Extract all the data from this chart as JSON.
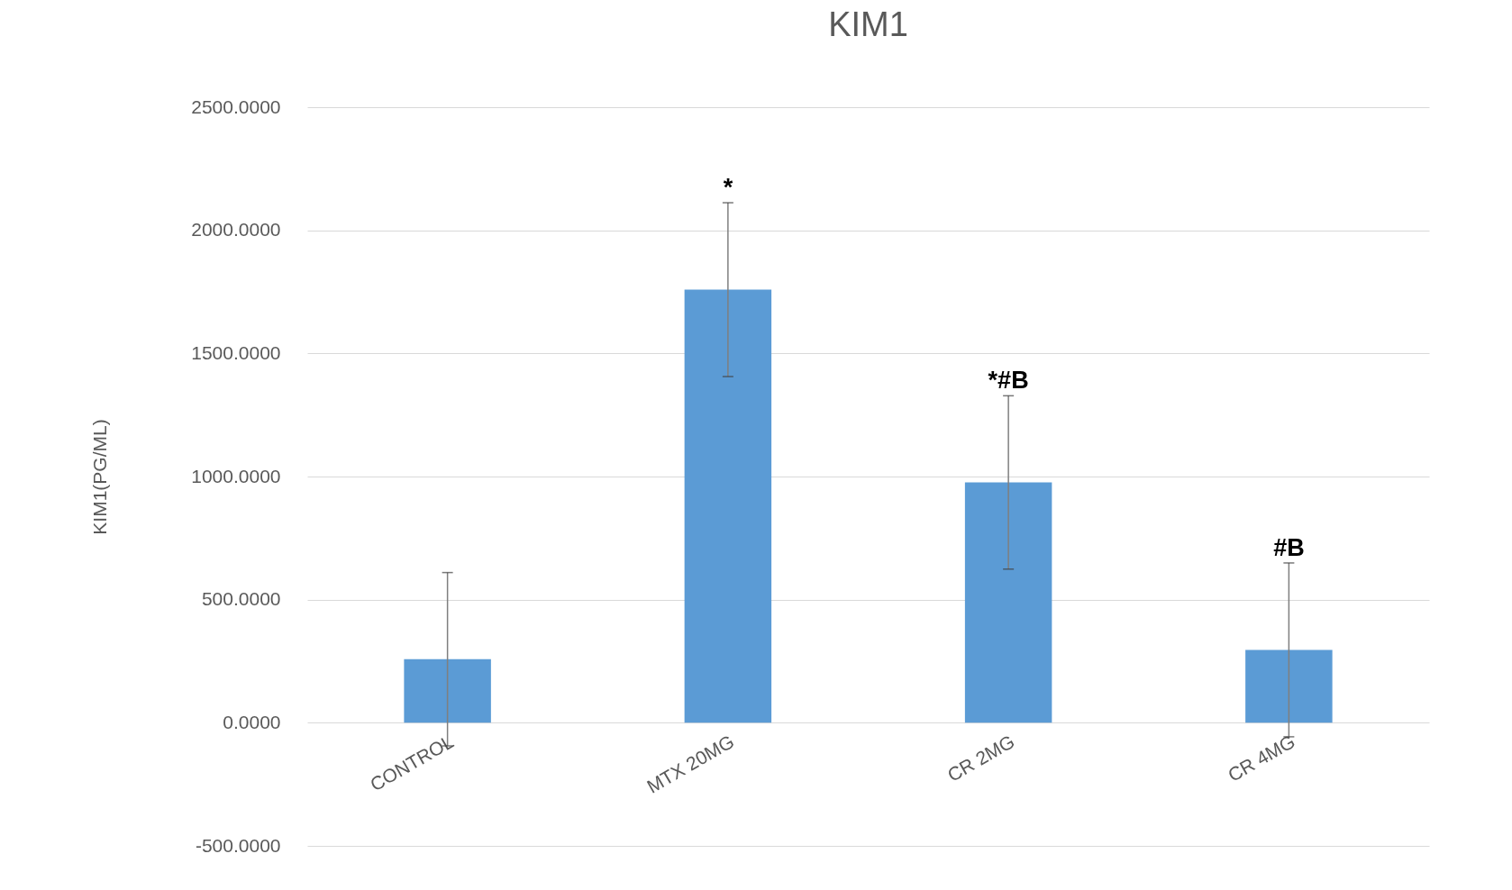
{
  "chart_data": {
    "type": "bar",
    "title": "KIM1",
    "ylabel": "KIM1(PG/ML)",
    "categories": [
      "CONTROL",
      "MTX 20MG",
      "CR 2MG",
      "CR 4MG"
    ],
    "values": [
      258,
      1759,
      976,
      296
    ],
    "errors": [
      352,
      353,
      352,
      353
    ],
    "color": "#5b9bd5",
    "ylim": [
      -500,
      2500
    ],
    "yticks": [
      {
        "value": -500,
        "label": "-500.0000"
      },
      {
        "value": 0,
        "label": "0.0000"
      },
      {
        "value": 500,
        "label": "500.0000"
      },
      {
        "value": 1000,
        "label": "1000.0000"
      },
      {
        "value": 1500,
        "label": "1500.0000"
      },
      {
        "value": 2000,
        "label": "2000.0000"
      },
      {
        "value": 2500,
        "label": "2500.0000"
      }
    ],
    "grid": "y",
    "annotations": [
      {
        "text": "*",
        "x": "MTX 20MG",
        "y": 2112
      },
      {
        "text": "*#B",
        "x": "CR 2MG",
        "y": 1328
      },
      {
        "text": "#B",
        "x": "CR 4MG",
        "y": 649
      }
    ]
  }
}
